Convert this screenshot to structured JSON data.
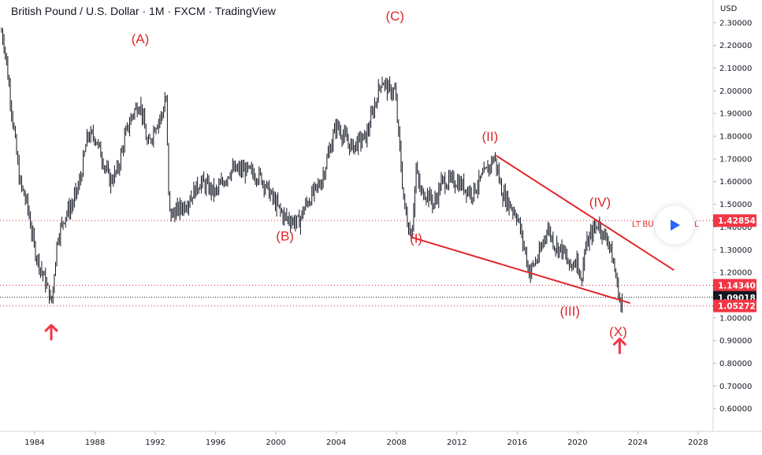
{
  "header": {
    "title": "British Pound / U.S. Dollar · 1M · FXCM · TradingView"
  },
  "chart_data": {
    "type": "line",
    "title": "British Pound / U.S. Dollar · 1M · FXCM · TradingView",
    "currency_label": "USD",
    "ylim": [
      0.5,
      2.4
    ],
    "xlim": [
      1981.7,
      2029
    ],
    "grid": false,
    "x_ticks": [
      "1984",
      "1988",
      "1992",
      "1996",
      "2000",
      "2004",
      "2008",
      "2012",
      "2016",
      "2020",
      "2024",
      "2028"
    ],
    "y_ticks": [
      "0.60000",
      "0.70000",
      "0.80000",
      "0.90000",
      "1.00000",
      "1.10000",
      "1.20000",
      "1.30000",
      "1.40000",
      "1.50000",
      "1.60000",
      "1.70000",
      "1.80000",
      "1.90000",
      "2.00000",
      "2.10000",
      "2.20000",
      "2.30000"
    ],
    "series": [
      {
        "name": "",
        "x": [
          1981.8,
          1982.0,
          1982.5,
          1983.0,
          1983.5,
          1984.0,
          1984.5,
          1985.0,
          1985.1,
          1985.5,
          1986.0,
          1986.5,
          1987.0,
          1987.5,
          1988.0,
          1988.5,
          1989.0,
          1989.5,
          1990.0,
          1990.5,
          1991.0,
          1991.5,
          1992.0,
          1992.5,
          1992.7,
          1992.9,
          1993.0,
          1994.0,
          1995.0,
          1996.0,
          1997.0,
          1998.0,
          1999.0,
          2000.0,
          2000.5,
          2001.0,
          2001.5,
          2002.0,
          2003.0,
          2004.0,
          2005.0,
          2006.0,
          2007.0,
          2007.5,
          2007.9,
          2008.5,
          2008.8,
          2009.0,
          2009.3,
          2009.6,
          2010.0,
          2010.5,
          2011.0,
          2012.0,
          2013.0,
          2014.0,
          2014.5,
          2015.0,
          2016.0,
          2016.5,
          2016.8,
          2017.5,
          2018.0,
          2018.5,
          2019.0,
          2019.5,
          2020.0,
          2020.2,
          2020.5,
          2021.0,
          2021.4,
          2021.8,
          2022.0,
          2022.5,
          2022.75,
          2022.9,
          2023.0
        ],
        "values": [
          2.26,
          2.2,
          1.9,
          1.6,
          1.5,
          1.3,
          1.2,
          1.1,
          1.05,
          1.35,
          1.45,
          1.5,
          1.6,
          1.8,
          1.8,
          1.7,
          1.6,
          1.65,
          1.8,
          1.9,
          1.95,
          1.75,
          1.85,
          1.9,
          2.0,
          1.5,
          1.45,
          1.5,
          1.6,
          1.55,
          1.65,
          1.65,
          1.62,
          1.5,
          1.45,
          1.43,
          1.42,
          1.5,
          1.6,
          1.85,
          1.75,
          1.8,
          2.05,
          2.0,
          2.0,
          1.5,
          1.4,
          1.37,
          1.65,
          1.55,
          1.55,
          1.5,
          1.6,
          1.6,
          1.55,
          1.65,
          1.71,
          1.55,
          1.45,
          1.3,
          1.2,
          1.28,
          1.4,
          1.32,
          1.3,
          1.22,
          1.27,
          1.15,
          1.3,
          1.38,
          1.42,
          1.35,
          1.36,
          1.2,
          1.1,
          1.04,
          1.09
        ]
      }
    ],
    "wave_labels": [
      {
        "text": "(A)",
        "x": 1991.0,
        "y": 2.21,
        "type": "wave"
      },
      {
        "text": "(B)",
        "x": 2000.6,
        "y": 1.34,
        "type": "wave"
      },
      {
        "text": "(C)",
        "x": 2007.9,
        "y": 2.31,
        "type": "wave"
      },
      {
        "text": "(I)",
        "x": 2009.3,
        "y": 1.33,
        "type": "wave"
      },
      {
        "text": "(II)",
        "x": 2014.2,
        "y": 1.78,
        "type": "wave"
      },
      {
        "text": "(III)",
        "x": 2019.5,
        "y": 1.01,
        "type": "wave"
      },
      {
        "text": "(IV)",
        "x": 2021.5,
        "y": 1.49,
        "type": "wave"
      },
      {
        "text": "(X)",
        "x": 2022.7,
        "y": 0.92,
        "type": "wave"
      }
    ],
    "trendlines": [
      {
        "x1": 2009.0,
        "y1": 1.355,
        "x2": 2023.5,
        "y2": 1.065
      },
      {
        "x1": 2014.6,
        "y1": 1.715,
        "x2": 2026.4,
        "y2": 1.21
      }
    ],
    "arrows": [
      {
        "x": 1985.1,
        "y": 0.94
      },
      {
        "x": 2022.8,
        "y": 0.88
      }
    ],
    "hlines": [
      {
        "y": 1.0905,
        "style": "dotted",
        "color": "#131722"
      },
      {
        "y": 1.0527,
        "style": "dashed",
        "color": "#e0262b"
      },
      {
        "y": 1.1434,
        "style": "dashed",
        "color": "#e0262b"
      },
      {
        "y": 1.4285,
        "style": "dashed",
        "color": "#e0262b"
      }
    ],
    "price_tags": [
      {
        "text": "1.42854",
        "y": 1.42854,
        "color": "#f23645"
      },
      {
        "text": "1.14340",
        "y": 1.1434,
        "color": "#f23645"
      },
      {
        "text": "1.09018",
        "y": 1.09018,
        "color": "#131722"
      },
      {
        "text": "1.05272",
        "y": 1.05272,
        "color": "#f23645"
      }
    ],
    "annotation": "LT BU",
    "annotation_tail": "VEL"
  }
}
